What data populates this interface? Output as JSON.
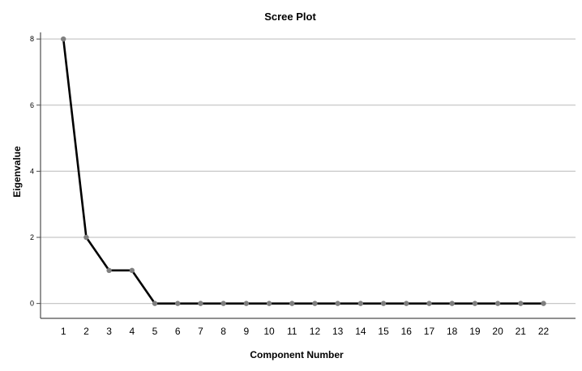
{
  "chart_data": {
    "type": "line",
    "title": "Scree Plot",
    "xlabel": "Component Number",
    "ylabel": "Eigenvalue",
    "x": [
      1,
      2,
      3,
      4,
      5,
      6,
      7,
      8,
      9,
      10,
      11,
      12,
      13,
      14,
      15,
      16,
      17,
      18,
      19,
      20,
      21,
      22
    ],
    "series": [
      {
        "name": "",
        "values": [
          8,
          2,
          1,
          1,
          0,
          0,
          0,
          0,
          0,
          0,
          0,
          0,
          0,
          0,
          0,
          0,
          0,
          0,
          0,
          0,
          0,
          0
        ]
      }
    ],
    "xlim": [
      0,
      23.4
    ],
    "ylim": [
      -0.45,
      8.2
    ],
    "yticks": [
      0,
      2,
      4,
      6,
      8
    ],
    "grid": "horizontal",
    "legend": "none",
    "colors": {
      "line": "#000000",
      "marker": "#7f7f7f",
      "gridline": "#c8c8c8",
      "axis": "#4d4d4d"
    }
  }
}
